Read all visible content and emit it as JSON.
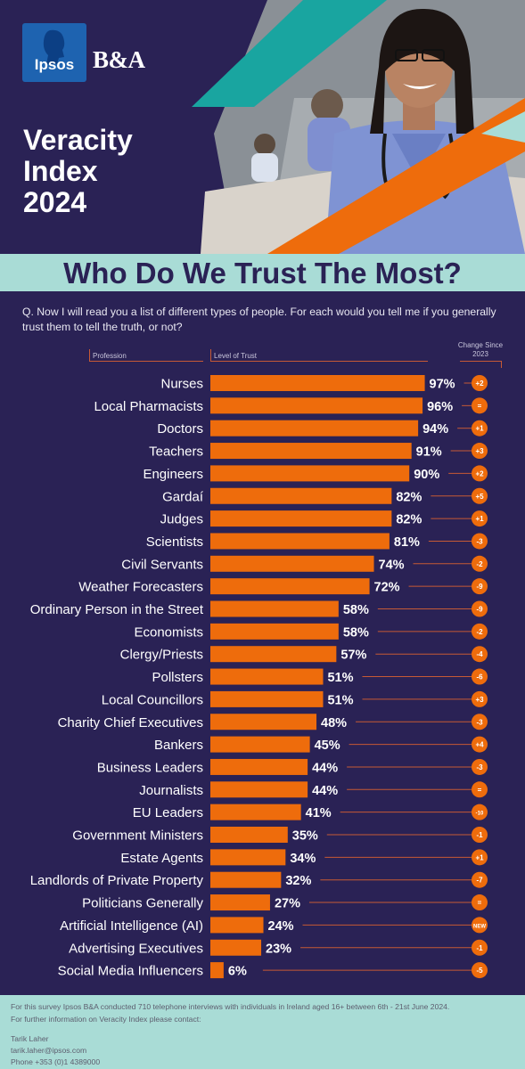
{
  "logos": {
    "ipsos": "Ipsos",
    "ba": "B&A"
  },
  "title": {
    "line1": "Veracity",
    "line2": "Index",
    "line3": "2024"
  },
  "subtitle": "Who Do We Trust The Most?",
  "question": "Q. Now I will read you a list of different types of people. For each would you tell me if you generally trust them to tell the truth, or not?",
  "column_headers": {
    "profession": "Profession",
    "level": "Level of Trust",
    "change_line1": "Change Since",
    "change_line2": "2023"
  },
  "colors": {
    "background": "#2a2255",
    "bar": "#ee6c0c",
    "accent_teal": "#a9dcd6",
    "accent_teal_dark": "#1aa7a1",
    "text_light": "#ffffff"
  },
  "chart_data": {
    "type": "bar",
    "orientation": "horizontal",
    "title": "Who Do We Trust The Most?",
    "xlabel": "Level of Trust",
    "ylabel": "Profession",
    "xlim": [
      0,
      100
    ],
    "categories": [
      "Nurses",
      "Local Pharmacists",
      "Doctors",
      "Teachers",
      "Engineers",
      "Gardaí",
      "Judges",
      "Scientists",
      "Civil Servants",
      "Weather Forecasters",
      "Ordinary Person in the Street",
      "Economists",
      "Clergy/Priests",
      "Pollsters",
      "Local Councillors",
      "Charity Chief Executives",
      "Bankers",
      "Business Leaders",
      "Journalists",
      "EU Leaders",
      "Government Ministers",
      "Estate Agents",
      "Landlords of Private Property",
      "Politicians Generally",
      "Artificial Intelligence (AI)",
      "Advertising Executives",
      "Social Media Influencers"
    ],
    "values": [
      97,
      96,
      94,
      91,
      90,
      82,
      82,
      81,
      74,
      72,
      58,
      58,
      57,
      51,
      51,
      48,
      45,
      44,
      44,
      41,
      35,
      34,
      32,
      27,
      24,
      23,
      6
    ],
    "value_labels": [
      "97%",
      "96%",
      "94%",
      "91%",
      "90%",
      "82%",
      "82%",
      "81%",
      "74%",
      "72%",
      "58%",
      "58%",
      "57%",
      "51%",
      "51%",
      "48%",
      "45%",
      "44%",
      "44%",
      "41%",
      "35%",
      "34%",
      "32%",
      "27%",
      "24%",
      "23%",
      "6%"
    ],
    "change_since_2023": [
      "+2",
      "=",
      "+1",
      "+3",
      "+2",
      "+5",
      "+1",
      "-3",
      "-2",
      "-9",
      "-9",
      "-2",
      "-4",
      "-6",
      "+3",
      "-3",
      "+4",
      "-3",
      "=",
      "-10",
      "-1",
      "+1",
      "-7",
      "=",
      "NEW",
      "-1",
      "-5"
    ],
    "grid": false,
    "legend": "none"
  },
  "footer": {
    "line1": "For this survey Ipsos B&A conducted 710 telephone interviews with individuals in Ireland aged 16+ between 6th - 21st June 2024.",
    "line2": "For further information on Veracity Index please contact:",
    "contact_name": "Tarik Laher",
    "contact_email": "tarik.laher@ipsos.com",
    "contact_phone": "Phone +353 (0)1 4389000"
  }
}
